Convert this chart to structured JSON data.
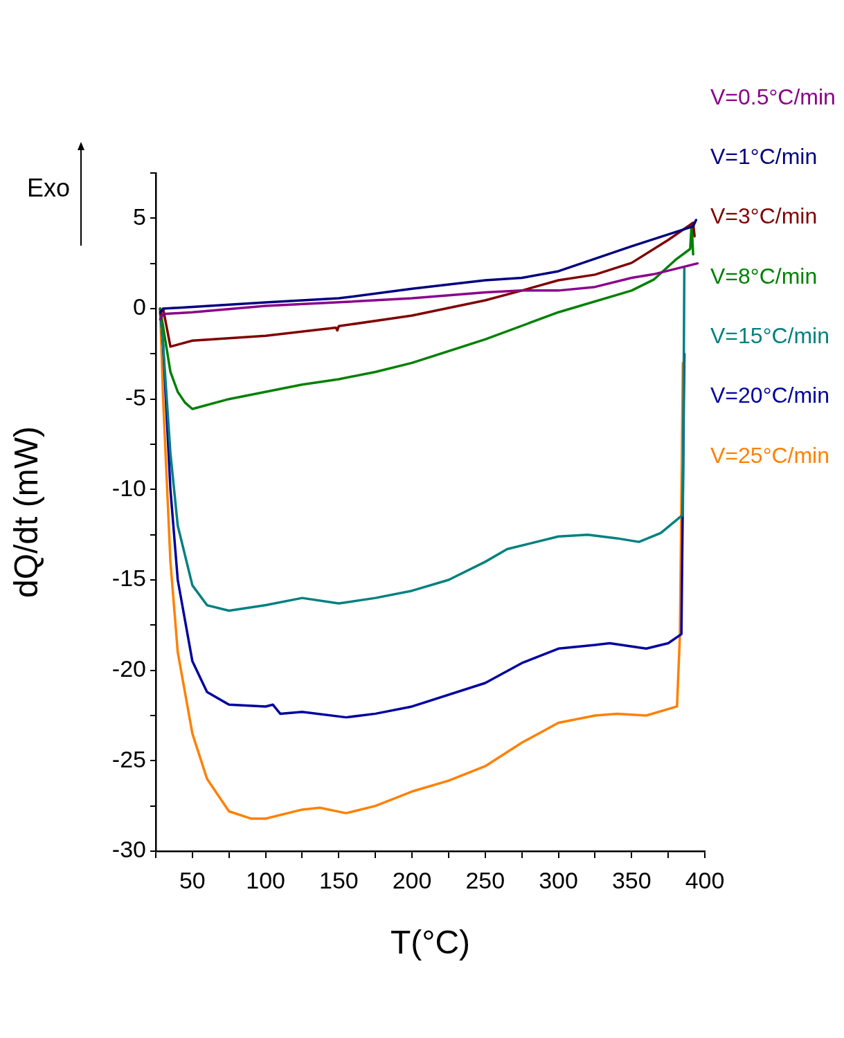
{
  "chart_data": {
    "type": "line",
    "xlabel": "T(°C)",
    "ylabel": "dQ/dt (mW)",
    "annotations": [
      "Exo"
    ],
    "legend": "top right",
    "grid": false,
    "marker": "none",
    "line_style": "solid",
    "xlim": [
      25,
      400
    ],
    "xticks": [
      {
        "value": 25,
        "label": null
      },
      50,
      {
        "value": 75,
        "label": null
      },
      100,
      {
        "value": 125,
        "label": null
      },
      150,
      {
        "value": 175,
        "label": null
      },
      200,
      {
        "value": 225,
        "label": null
      },
      250,
      {
        "value": 275,
        "label": null
      },
      300,
      {
        "value": 325,
        "label": null
      },
      350,
      {
        "value": 375,
        "label": null
      },
      400
    ],
    "ylim": [
      -30,
      7.5
    ],
    "yticks": [
      -30,
      {
        "value": -27.5,
        "label": null
      },
      -25,
      {
        "value": -22.5,
        "label": null
      },
      -20,
      {
        "value": -17.5,
        "label": null
      },
      -15,
      {
        "value": -12.5,
        "label": null
      },
      -10,
      {
        "value": -7.5,
        "label": null
      },
      -5,
      {
        "value": -2.5,
        "label": null
      },
      0,
      {
        "value": 2.5,
        "label": null
      },
      5,
      {
        "value": 7.5,
        "label": null
      }
    ],
    "series": [
      {
        "name": "V=0.5°C/min",
        "color": "#8b008b",
        "x": [
          28,
          30,
          50,
          100,
          150,
          200,
          250,
          275,
          300,
          325,
          350,
          365,
          395
        ],
        "values": [
          -0.6,
          -0.3,
          -0.2,
          0.15,
          0.35,
          0.57,
          0.9,
          1.0,
          1.0,
          1.2,
          1.7,
          1.9,
          2.5
        ]
      },
      {
        "name": "V=1°C/min",
        "color": "#000080",
        "x": [
          28,
          30,
          100,
          150,
          200,
          250,
          275,
          300,
          350,
          392,
          394
        ],
        "values": [
          -0.2,
          0,
          0.34,
          0.57,
          1.1,
          1.57,
          1.7,
          2.07,
          3.45,
          4.55,
          4.9
        ]
      },
      {
        "name": "V=3°C/min",
        "color": "#800000",
        "x": [
          28,
          30,
          35,
          50,
          100,
          148,
          149,
          150,
          200,
          250,
          275,
          300,
          325,
          350,
          375,
          392,
          393
        ],
        "values": [
          -0.3,
          0,
          -2.1,
          -1.77,
          -1.5,
          -1.05,
          -1.2,
          -0.97,
          -0.38,
          0.46,
          1.0,
          1.57,
          1.88,
          2.53,
          3.8,
          4.75,
          4.0
        ]
      },
      {
        "name": "V=8°C/min",
        "color": "#008000",
        "x": [
          28,
          30,
          35,
          40,
          45,
          50,
          75,
          100,
          125,
          150,
          175,
          200,
          250,
          300,
          350,
          365,
          380,
          390,
          391,
          392
        ],
        "values": [
          0,
          -1,
          -3.5,
          -4.6,
          -5.2,
          -5.55,
          -5.0,
          -4.6,
          -4.2,
          -3.9,
          -3.5,
          -3.0,
          -1.7,
          -0.2,
          1.0,
          1.6,
          2.7,
          3.3,
          4.7,
          3.0
        ]
      },
      {
        "name": "V=15°C/min",
        "color": "#008080",
        "x": [
          28,
          30,
          35,
          40,
          50,
          60,
          75,
          100,
          125,
          150,
          175,
          200,
          225,
          250,
          265,
          300,
          320,
          340,
          355,
          370,
          385,
          386
        ],
        "values": [
          0,
          -2,
          -8,
          -12,
          -15.3,
          -16.4,
          -16.7,
          -16.4,
          -16.0,
          -16.3,
          -16.0,
          -15.6,
          -15.0,
          -14.0,
          -13.3,
          -12.6,
          -12.5,
          -12.7,
          -12.9,
          -12.4,
          -11.4,
          2.3
        ]
      },
      {
        "name": "V=20°C/min",
        "color": "#0000a0",
        "x": [
          28,
          30,
          35,
          40,
          50,
          60,
          75,
          100,
          105,
          110,
          125,
          155,
          175,
          200,
          250,
          275,
          300,
          325,
          335,
          360,
          375,
          384,
          386
        ],
        "values": [
          0,
          -2,
          -10,
          -15,
          -19.5,
          -21.2,
          -21.9,
          -22.0,
          -21.9,
          -22.4,
          -22.3,
          -22.6,
          -22.4,
          -22.0,
          -20.7,
          -19.6,
          -18.8,
          -18.6,
          -18.5,
          -18.8,
          -18.5,
          -18.0,
          -2.5
        ]
      },
      {
        "name": "V=25°C/min",
        "color": "#ff8000",
        "x": [
          28,
          30,
          35,
          40,
          50,
          60,
          75,
          90,
          100,
          125,
          137,
          155,
          175,
          200,
          225,
          250,
          275,
          300,
          325,
          340,
          360,
          381,
          383,
          385
        ],
        "values": [
          0,
          -5,
          -14,
          -19,
          -23.5,
          -26,
          -27.8,
          -28.2,
          -28.2,
          -27.7,
          -27.6,
          -27.9,
          -27.5,
          -26.7,
          -26.1,
          -25.3,
          -24.0,
          -22.9,
          -22.5,
          -22.4,
          -22.5,
          -22.0,
          -18,
          -3
        ]
      }
    ]
  }
}
